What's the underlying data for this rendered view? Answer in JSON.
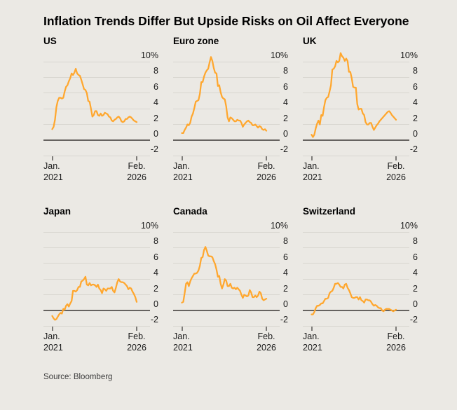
{
  "title": "Inflation Trends Differ But Upside Risks on Oil Affect Everyone",
  "source": "Source: Bloomberg",
  "colors": {
    "background": "#EBE9E4",
    "line": "#FFA72E",
    "grid": "#D8D6D0",
    "zero_line": "#666360",
    "text": "#1A1A1A"
  },
  "axis": {
    "y_tick_labels": [
      "10%",
      "8",
      "6",
      "4",
      "2",
      "0",
      "-2"
    ],
    "y_values": [
      10,
      8,
      6,
      4,
      2,
      0,
      -2
    ],
    "ylim": [
      -2,
      10
    ],
    "x_start_label": [
      "Jan.",
      "2021"
    ],
    "x_end_label": [
      "Feb.",
      "2026"
    ]
  },
  "chart_data": [
    {
      "type": "line",
      "title": "US",
      "unit": "%",
      "frequency": "monthly",
      "x_start": "Jan. 2021",
      "x_end": "Feb. 2026",
      "ylim": [
        -2,
        10
      ],
      "values": [
        1.4,
        1.7,
        2.6,
        4.2,
        5.0,
        5.4,
        5.4,
        5.3,
        5.4,
        6.2,
        6.8,
        7.0,
        7.5,
        7.9,
        8.5,
        8.3,
        8.6,
        9.1,
        8.5,
        8.3,
        8.2,
        7.7,
        7.1,
        6.5,
        6.4,
        6.0,
        5.0,
        4.9,
        4.0,
        3.0,
        3.2,
        3.7,
        3.7,
        3.2,
        3.1,
        3.4,
        3.1,
        3.2,
        3.5,
        3.4,
        3.3,
        3.0,
        2.9,
        2.5,
        2.4,
        2.6,
        2.7,
        2.9,
        3.0,
        2.8,
        2.4,
        2.3,
        2.4,
        2.7,
        2.7,
        2.9,
        3.0,
        2.9,
        2.7,
        2.5,
        2.4,
        2.3
      ]
    },
    {
      "type": "line",
      "title": "Euro zone",
      "unit": "%",
      "frequency": "monthly",
      "x_start": "Jan. 2021",
      "x_end": "Feb. 2026",
      "ylim": [
        -2,
        10
      ],
      "values": [
        0.9,
        0.9,
        1.3,
        1.6,
        2.0,
        1.9,
        2.2,
        3.0,
        3.4,
        4.1,
        4.9,
        5.0,
        5.1,
        5.9,
        7.4,
        7.4,
        8.1,
        8.6,
        8.9,
        9.1,
        9.9,
        10.6,
        10.1,
        9.2,
        8.6,
        8.5,
        6.9,
        7.0,
        6.1,
        5.5,
        5.3,
        5.2,
        4.3,
        2.9,
        2.4,
        2.9,
        2.8,
        2.6,
        2.4,
        2.4,
        2.6,
        2.5,
        2.5,
        2.2,
        1.7,
        2.0,
        2.2,
        2.4,
        2.5,
        2.3,
        2.2,
        1.9,
        1.9,
        2.0,
        1.8,
        1.6,
        1.8,
        1.7,
        1.4,
        1.3,
        1.4,
        1.2
      ]
    },
    {
      "type": "line",
      "title": "UK",
      "unit": "%",
      "frequency": "monthly",
      "x_start": "Jan. 2021",
      "x_end": "Feb. 2026",
      "ylim": [
        -2,
        10
      ],
      "values": [
        0.7,
        0.4,
        0.7,
        1.5,
        2.1,
        2.5,
        2.0,
        3.2,
        3.1,
        4.2,
        5.1,
        5.4,
        5.5,
        6.2,
        7.0,
        9.0,
        9.1,
        9.4,
        10.1,
        9.9,
        10.1,
        11.1,
        10.7,
        10.5,
        10.1,
        10.4,
        10.1,
        8.7,
        8.7,
        7.9,
        6.8,
        6.7,
        6.7,
        4.6,
        3.9,
        4.0,
        4.0,
        3.4,
        3.2,
        2.3,
        2.0,
        2.0,
        2.2,
        2.2,
        1.7,
        1.3,
        1.6,
        1.9,
        2.1,
        2.4,
        2.6,
        2.8,
        3.0,
        3.2,
        3.4,
        3.6,
        3.7,
        3.5,
        3.2,
        3.0,
        2.8,
        2.6
      ]
    },
    {
      "type": "line",
      "title": "Japan",
      "unit": "%",
      "frequency": "monthly",
      "x_start": "Jan. 2021",
      "x_end": "Feb. 2026",
      "ylim": [
        -2,
        10
      ],
      "values": [
        -0.7,
        -1.0,
        -1.2,
        -1.1,
        -0.8,
        -0.5,
        -0.3,
        -0.4,
        0.2,
        0.1,
        0.6,
        0.8,
        0.5,
        0.9,
        1.2,
        2.5,
        2.5,
        2.4,
        2.6,
        3.0,
        3.0,
        3.7,
        3.8,
        4.0,
        4.3,
        3.3,
        3.2,
        3.5,
        3.2,
        3.3,
        3.3,
        3.2,
        3.0,
        3.3,
        2.8,
        2.6,
        2.2,
        2.8,
        2.7,
        2.5,
        2.8,
        2.8,
        2.8,
        3.0,
        2.5,
        2.3,
        2.9,
        3.6,
        4.0,
        3.7,
        3.6,
        3.6,
        3.5,
        3.3,
        3.1,
        2.7,
        2.9,
        2.8,
        2.4,
        2.1,
        1.7,
        1.1
      ]
    },
    {
      "type": "line",
      "title": "Canada",
      "unit": "%",
      "frequency": "monthly",
      "x_start": "Jan. 2021",
      "x_end": "Feb. 2026",
      "ylim": [
        -2,
        10
      ],
      "values": [
        1.0,
        1.1,
        2.2,
        3.4,
        3.6,
        3.1,
        3.7,
        4.1,
        4.4,
        4.7,
        4.7,
        4.8,
        5.1,
        5.7,
        6.7,
        6.8,
        7.7,
        8.1,
        7.6,
        7.0,
        6.9,
        6.9,
        6.8,
        6.3,
        5.9,
        5.2,
        4.3,
        4.4,
        3.4,
        2.8,
        3.3,
        4.0,
        3.8,
        3.1,
        3.1,
        3.4,
        2.9,
        2.8,
        2.9,
        2.7,
        2.9,
        2.7,
        2.5,
        2.0,
        1.6,
        2.0,
        1.9,
        1.8,
        1.9,
        2.6,
        2.3,
        1.7,
        1.7,
        1.9,
        1.7,
        1.9,
        2.4,
        2.2,
        1.5,
        1.3,
        1.4,
        1.5
      ]
    },
    {
      "type": "line",
      "title": "Switzerland",
      "unit": "%",
      "frequency": "monthly",
      "x_start": "Jan. 2021",
      "x_end": "Feb. 2026",
      "ylim": [
        -2,
        10
      ],
      "values": [
        -0.5,
        -0.5,
        -0.2,
        0.3,
        0.6,
        0.6,
        0.7,
        0.9,
        0.9,
        1.2,
        1.5,
        1.5,
        1.6,
        2.2,
        2.4,
        2.5,
        2.9,
        3.4,
        3.4,
        3.5,
        3.3,
        3.0,
        3.0,
        2.8,
        3.3,
        3.4,
        2.9,
        2.6,
        2.2,
        1.7,
        1.6,
        1.6,
        1.7,
        1.7,
        1.4,
        1.7,
        1.3,
        1.2,
        1.0,
        1.4,
        1.4,
        1.3,
        1.3,
        1.1,
        0.8,
        0.6,
        0.7,
        0.6,
        0.4,
        0.3,
        0.3,
        0.0,
        -0.1,
        0.1,
        0.2,
        0.2,
        0.2,
        0.1,
        0.0,
        -0.1,
        0.0,
        0.1
      ]
    }
  ]
}
